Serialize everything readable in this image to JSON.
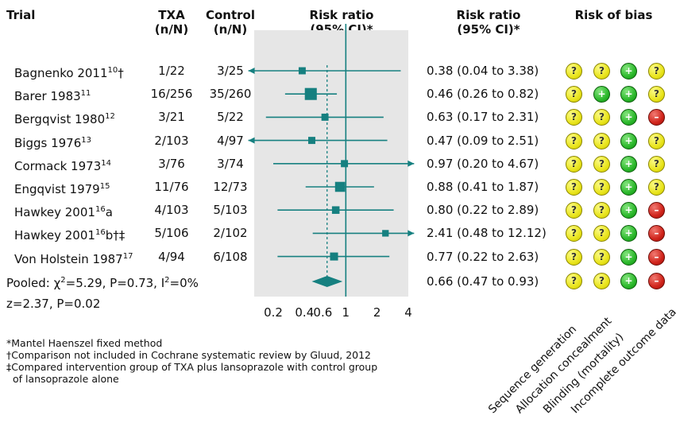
{
  "headers": {
    "trial": "Trial",
    "txa": [
      "TXA",
      "(n/N)"
    ],
    "control": [
      "Control",
      "(n/N)"
    ],
    "plot": [
      "Risk ratio",
      "(95% CI)*"
    ],
    "rr": [
      "Risk ratio",
      "(95% CI)*"
    ],
    "bias": "Risk of bias"
  },
  "trials": [
    {
      "name": "Bagnenko 2011",
      "ref": "10",
      "suffix": "†",
      "txa": "1/22",
      "control": "3/25",
      "rr_text": "0.38 (0.04 to 3.38)",
      "bias": [
        "unclear",
        "unclear",
        "low",
        "unclear"
      ]
    },
    {
      "name": "Barer 1983",
      "ref": "11",
      "suffix": "",
      "txa": "16/256",
      "control": "35/260",
      "rr_text": "0.46 (0.26 to 0.82)",
      "bias": [
        "unclear",
        "low",
        "low",
        "unclear"
      ]
    },
    {
      "name": "Bergqvist 1980",
      "ref": "12",
      "suffix": "",
      "txa": "3/21",
      "control": "5/22",
      "rr_text": "0.63 (0.17 to 2.31)",
      "bias": [
        "unclear",
        "unclear",
        "low",
        "high"
      ]
    },
    {
      "name": "Biggs 1976",
      "ref": "13",
      "suffix": "",
      "txa": "2/103",
      "control": "4/97",
      "rr_text": "0.47 (0.09 to 2.51)",
      "bias": [
        "unclear",
        "unclear",
        "low",
        "unclear"
      ]
    },
    {
      "name": "Cormack 1973",
      "ref": "14",
      "suffix": "",
      "txa": "3/76",
      "control": "3/74",
      "rr_text": "0.97 (0.20 to 4.67)",
      "bias": [
        "unclear",
        "unclear",
        "low",
        "unclear"
      ]
    },
    {
      "name": "Engqvist 1979",
      "ref": "15",
      "suffix": "",
      "txa": "11/76",
      "control": "12/73",
      "rr_text": "0.88  (0.41 to 1.87)",
      "bias": [
        "unclear",
        "unclear",
        "low",
        "unclear"
      ]
    },
    {
      "name": "Hawkey 2001",
      "ref": "16",
      "suffix": "a",
      "txa": "4/103",
      "control": "5/103",
      "rr_text": "0.80 (0.22 to 2.89)",
      "bias": [
        "unclear",
        "unclear",
        "low",
        "high"
      ]
    },
    {
      "name": "Hawkey 2001",
      "ref": "16",
      "suffix": "b†‡",
      "txa": "5/106",
      "control": "2/102",
      "rr_text": "2.41 (0.48 to 12.12)",
      "bias": [
        "unclear",
        "unclear",
        "low",
        "high"
      ]
    },
    {
      "name": "Von Holstein 1987",
      "ref": "17",
      "suffix": "",
      "txa": "4/94",
      "control": "6/108",
      "rr_text": "0.77 (0.22 to 2.63)",
      "bias": [
        "unclear",
        "unclear",
        "low",
        "high"
      ]
    }
  ],
  "pooled": {
    "label_pre": "Pooled: ",
    "chi": "χ",
    "chi_sup": "2",
    "label_mid": "=5.29, P=0.73, I",
    "i_sup": "2",
    "label_post": "=0%",
    "z_text": "z=2.37, P=0.02",
    "rr_text": "0.66 (0.47 to 0.93)",
    "bias": [
      "unclear",
      "unclear",
      "low",
      "high"
    ]
  },
  "bias_domains": [
    "Sequence generation",
    "Allocation concealment",
    "Blinding (mortality)",
    "Incomplete outcome data"
  ],
  "bias_symbols": {
    "unclear": "?",
    "low": "+",
    "high": "–"
  },
  "bias_colors": {
    "unclear": "#e9e41c",
    "low": "#2bb82b",
    "high": "#d0241b"
  },
  "axis_ticks": [
    "0.2",
    "0.4",
    "0.6",
    "1",
    "2",
    "4"
  ],
  "footnotes": [
    "*Mantel Haenszel fixed method",
    "†Comparison not included in Cochrane systematic review by Gluud, 2012",
    "‡Compared intervention group of TXA plus lansoprazole with control group",
    "of lansoprazole alone"
  ],
  "colors": {
    "plot_bg": "#e6e6e6",
    "mark": "#168080",
    "axis_line": "#168080"
  },
  "chart_data": {
    "type": "forest",
    "scale": "log",
    "xlim": [
      0.2,
      4
    ],
    "reference_line": 1,
    "pooled_line": 0.66,
    "x_ticks": [
      0.2,
      0.4,
      0.6,
      1,
      2,
      4
    ],
    "series": [
      {
        "name": "Bagnenko 2011",
        "rr": 0.38,
        "lo": 0.04,
        "hi": 3.38,
        "weight": 2
      },
      {
        "name": "Barer 1983",
        "rr": 0.46,
        "lo": 0.26,
        "hi": 0.82,
        "weight": 10
      },
      {
        "name": "Bergqvist 1980",
        "rr": 0.63,
        "lo": 0.17,
        "hi": 2.31,
        "weight": 2
      },
      {
        "name": "Biggs 1976",
        "rr": 0.47,
        "lo": 0.09,
        "hi": 2.51,
        "weight": 2
      },
      {
        "name": "Cormack 1973",
        "rr": 0.97,
        "lo": 0.2,
        "hi": 4.67,
        "weight": 2
      },
      {
        "name": "Engqvist 1979",
        "rr": 0.88,
        "lo": 0.41,
        "hi": 1.87,
        "weight": 6
      },
      {
        "name": "Hawkey 2001a",
        "rr": 0.8,
        "lo": 0.22,
        "hi": 2.89,
        "weight": 2.5
      },
      {
        "name": "Hawkey 2001b",
        "rr": 2.41,
        "lo": 0.48,
        "hi": 12.12,
        "weight": 1.5
      },
      {
        "name": "Von Holstein 1987",
        "rr": 0.77,
        "lo": 0.22,
        "hi": 2.63,
        "weight": 3
      }
    ],
    "pooled": {
      "rr": 0.66,
      "lo": 0.47,
      "hi": 0.93
    }
  }
}
